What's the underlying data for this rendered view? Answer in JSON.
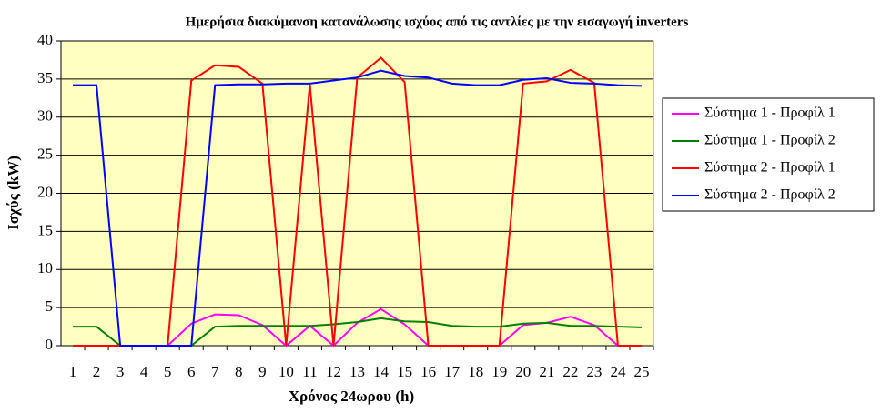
{
  "chart_data": {
    "type": "line",
    "title": "Ημερήσια διακύμανση κατανάλωσης ισχύος από τις αντλίες με την εισαγωγή inverters",
    "x_label": "Χρόνος 24ωρου (h)",
    "y_label": "Ισχύς (kW)",
    "categories": [
      "1",
      "2",
      "3",
      "4",
      "5",
      "6",
      "7",
      "8",
      "9",
      "10",
      "11",
      "12",
      "13",
      "14",
      "15",
      "16",
      "17",
      "18",
      "19",
      "20",
      "21",
      "22",
      "23",
      "24",
      "25"
    ],
    "ylim": [
      0,
      40
    ],
    "yticks": [
      0,
      5,
      10,
      15,
      20,
      25,
      30,
      35,
      40
    ],
    "grid": true,
    "legend": "right",
    "series": [
      {
        "name": "Σύστημα 1 - Προφίλ 1",
        "color": "#ff00ff",
        "values": [
          0,
          0,
          0,
          0,
          0,
          2.9,
          4.1,
          4.0,
          2.7,
          0,
          2.6,
          0,
          3.0,
          4.8,
          2.8,
          0,
          0,
          0,
          0,
          2.7,
          3.0,
          3.8,
          2.7,
          0,
          0
        ]
      },
      {
        "name": "Σύστημα 1 - Προφίλ 2",
        "color": "#008000",
        "values": [
          2.5,
          2.5,
          0,
          0,
          0,
          0,
          2.5,
          2.6,
          2.6,
          2.6,
          2.6,
          2.8,
          3.1,
          3.6,
          3.2,
          3.1,
          2.6,
          2.5,
          2.5,
          2.9,
          3.0,
          2.6,
          2.6,
          2.5,
          2.4
        ]
      },
      {
        "name": "Σύστημα 2 - Προφίλ 1",
        "color": "#ff0000",
        "values": [
          0,
          0,
          0,
          0,
          0,
          34.8,
          36.8,
          36.6,
          34.4,
          0,
          34.3,
          0,
          35.2,
          37.8,
          34.6,
          0,
          0,
          0,
          0,
          34.4,
          34.7,
          36.2,
          34.5,
          0,
          0
        ]
      },
      {
        "name": "Σύστημα 2 - Προφίλ 2",
        "color": "#0000ff",
        "values": [
          34.2,
          34.2,
          0,
          0,
          0,
          0,
          34.2,
          34.3,
          34.3,
          34.4,
          34.4,
          34.8,
          35.2,
          36.1,
          35.4,
          35.2,
          34.4,
          34.2,
          34.2,
          34.9,
          35.1,
          34.5,
          34.4,
          34.2,
          34.1
        ]
      }
    ]
  }
}
